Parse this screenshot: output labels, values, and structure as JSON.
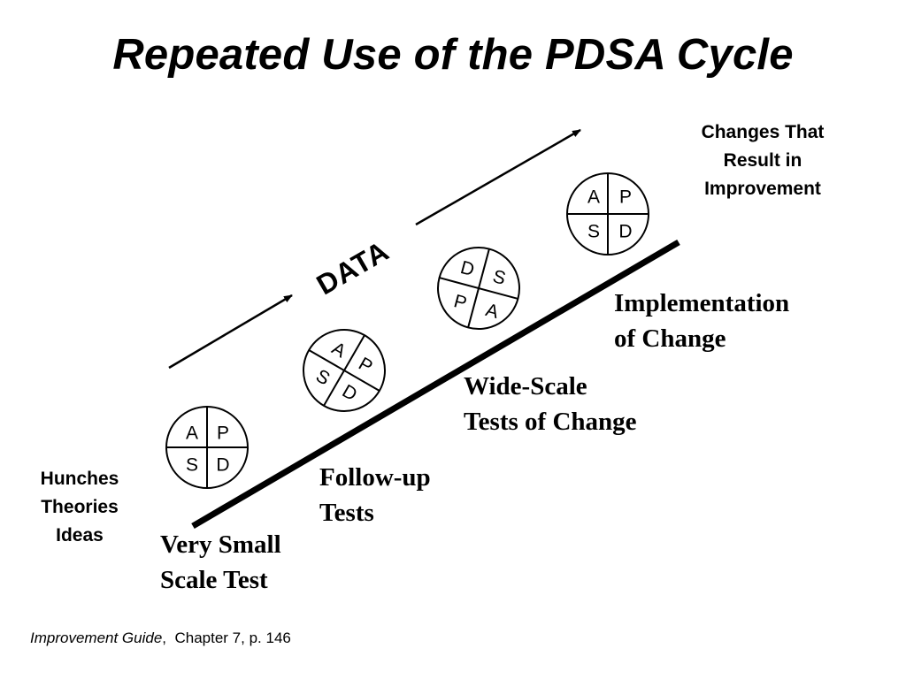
{
  "title": "Repeated Use of the PDSA Cycle",
  "data_label": "DATA",
  "labels": {
    "hunches": [
      "Hunches",
      "Theories",
      "Ideas"
    ],
    "changes": [
      "Changes That",
      "Result in",
      "Improvement"
    ],
    "very_small": [
      "Very Small",
      "Scale Test"
    ],
    "follow_up": [
      "Follow-up",
      "Tests"
    ],
    "wide_scale": [
      "Wide-Scale",
      "Tests of Change"
    ],
    "implementation": [
      "Implementation",
      "of Change"
    ]
  },
  "cycle_letters": {
    "act": "A",
    "plan": "P",
    "study": "S",
    "do": "D"
  },
  "citation": {
    "book": "Improvement  Guide",
    "sep": ",",
    "location": "Chapter 7, p. 146"
  }
}
